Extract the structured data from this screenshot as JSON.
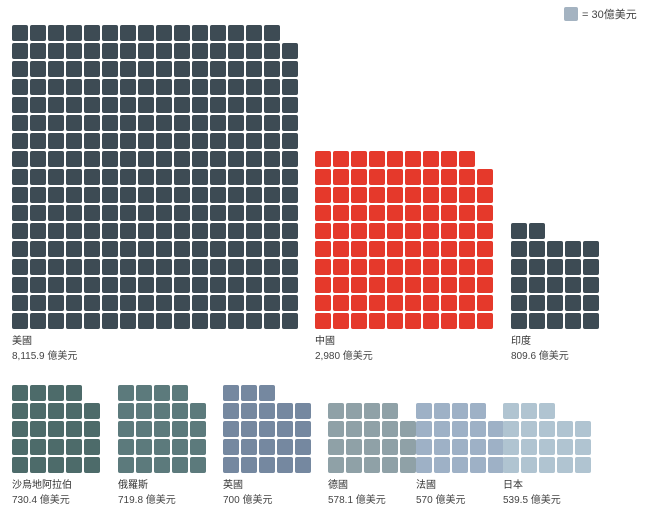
{
  "chart_data": {
    "type": "waffle",
    "unit_value": 30,
    "legend": {
      "label": "= 30億美元",
      "color": "#a4b3c1",
      "position": "top-right"
    },
    "items": [
      {
        "name": "美國",
        "value": 8115.9,
        "value_label": "8,115.9 億美元",
        "color": "#3d4b54"
      },
      {
        "name": "中國",
        "value": 2980,
        "value_label": "2,980 億美元",
        "color": "#e5392b"
      },
      {
        "name": "印度",
        "value": 809.6,
        "value_label": "809.6 億美元",
        "color": "#3d4b54"
      },
      {
        "name": "沙烏地阿拉伯",
        "value": 730.4,
        "value_label": "730.4 億美元",
        "color": "#4d6b6a"
      },
      {
        "name": "俄羅斯",
        "value": 719.8,
        "value_label": "719.8 億美元",
        "color": "#5c7a7c"
      },
      {
        "name": "英國",
        "value": 700,
        "value_label": "700 億美元",
        "color": "#7588a0"
      },
      {
        "name": "德國",
        "value": 578.1,
        "value_label": "578.1 億美元",
        "color": "#8fa1a7"
      },
      {
        "name": "法國",
        "value": 570,
        "value_label": "570 億美元",
        "color": "#9eb1c6"
      },
      {
        "name": "日本",
        "value": 539.5,
        "value_label": "539.5 億美元",
        "color": "#b0c4d1"
      }
    ]
  }
}
